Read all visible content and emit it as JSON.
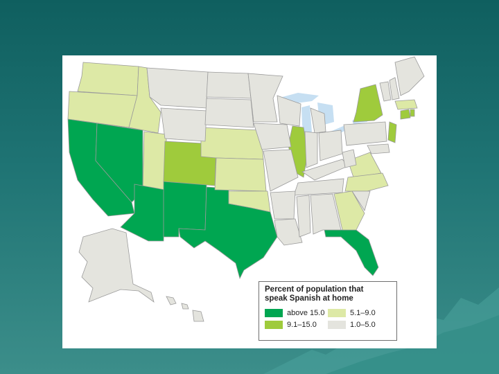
{
  "legend": {
    "title_line1": "Percent of population that",
    "title_line2": "speak Spanish at home",
    "classes": [
      {
        "label": "above 15.0",
        "color": "#00a651"
      },
      {
        "label": "5.1–9.0",
        "color": "#dde9a6"
      },
      {
        "label": "9.1–15.0",
        "color": "#9fcb3c"
      },
      {
        "label": "1.0–5.0",
        "color": "#e4e4de"
      }
    ]
  },
  "colors": {
    "slide_background": "#1f7474",
    "water": "#c6dff2",
    "state_border": "#9a9a9a"
  }
}
